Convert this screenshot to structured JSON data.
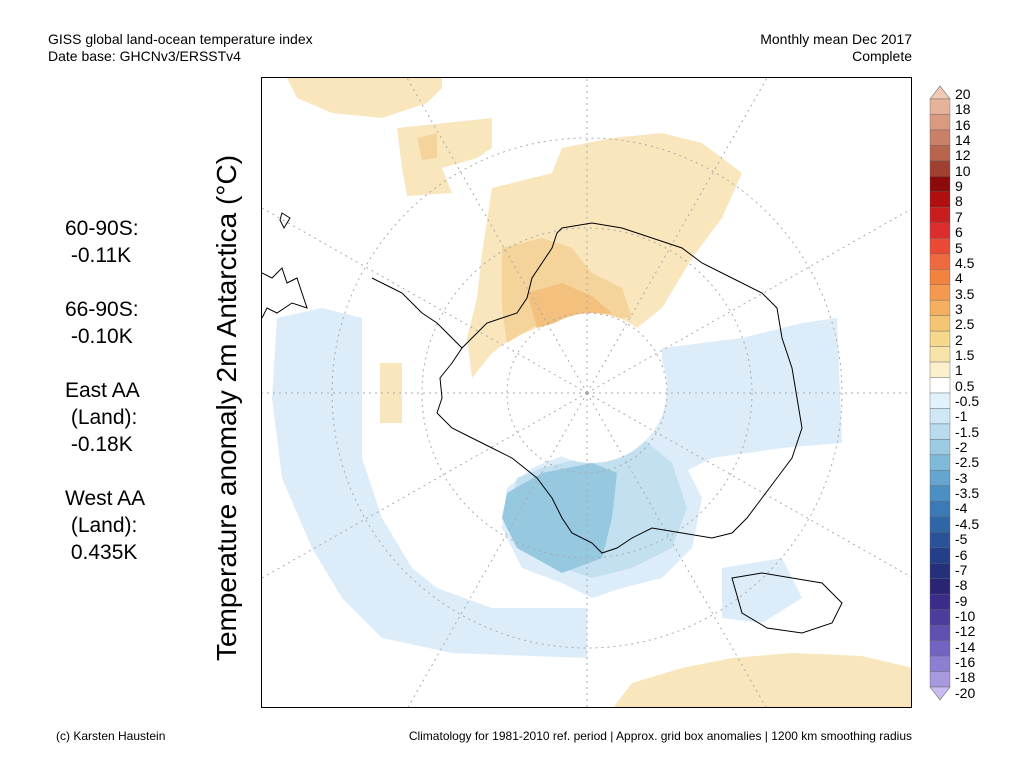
{
  "header": {
    "title": "GISS global land-ocean temperature index",
    "database": "Date base: GHCNv3/ERSSTv4",
    "period": "Monthly mean Dec 2017",
    "status": "Complete"
  },
  "y_axis_label": "Temperature anomaly 2m Antarctica (°C)",
  "stats": [
    {
      "lines": [
        "60-90S:",
        " -0.11K"
      ]
    },
    {
      "lines": [
        "66-90S:",
        " -0.10K"
      ]
    },
    {
      "lines": [
        "East AA",
        " (Land):",
        " -0.18K"
      ]
    },
    {
      "lines": [
        "West AA",
        " (Land):",
        " 0.435K"
      ]
    }
  ],
  "colorbar": {
    "labels": [
      "20",
      "18",
      "16",
      "14",
      "12",
      "10",
      "9",
      "8",
      "7",
      "6",
      "5",
      "4.5",
      "4",
      "3.5",
      "3",
      "2.5",
      "2",
      "1.5",
      "1",
      "0.5",
      "-0.5",
      "-1",
      "-1.5",
      "-2",
      "-2.5",
      "-3",
      "-3.5",
      "-4",
      "-4.5",
      "-5",
      "-6",
      "-7",
      "-8",
      "-9",
      "-10",
      "-12",
      "-14",
      "-16",
      "-18",
      "-20"
    ],
    "colors": [
      "#f2c9b4",
      "#e6b29a",
      "#d99a80",
      "#c98066",
      "#b8654d",
      "#a04030",
      "#8c0a0a",
      "#b00f0f",
      "#c81e1e",
      "#dc2e2e",
      "#e84a36",
      "#ee6a3e",
      "#f2823e",
      "#f49a50",
      "#f4b060",
      "#f4c674",
      "#f6d88c",
      "#f8e4a8",
      "#faf0cc",
      "#ffffff",
      "#e2f2fc",
      "#cfe8f6",
      "#b8dcee",
      "#9ccce4",
      "#80bada",
      "#64a6d0",
      "#4a90c4",
      "#3a7ab6",
      "#2f66a8",
      "#2a5298",
      "#243e8a",
      "#24307a",
      "#2a2474",
      "#3a2c88",
      "#4c3c9c",
      "#6050b0",
      "#7464c2",
      "#8c7ed2",
      "#a898e0",
      "#c8bcf0"
    ]
  },
  "footer": {
    "credit": "(c) Karsten Haustein",
    "note": "Climatology for 1981-2010 ref. period | Approx. grid box anomalies | 1200 km smoothing radius"
  },
  "map": {
    "projection": "south-polar-stereographic",
    "colors": {
      "warm_light": "#f9e6bd",
      "warm_mid": "#f5d49c",
      "warm_strong": "#f3c07e",
      "cool_light": "#dcedf9",
      "cool_mid": "#c2e0f0",
      "cool_strong": "#96c8e0",
      "cool_deep": "#7cb8d6",
      "coast": "#000000",
      "grid": "#aaaaaa"
    }
  }
}
